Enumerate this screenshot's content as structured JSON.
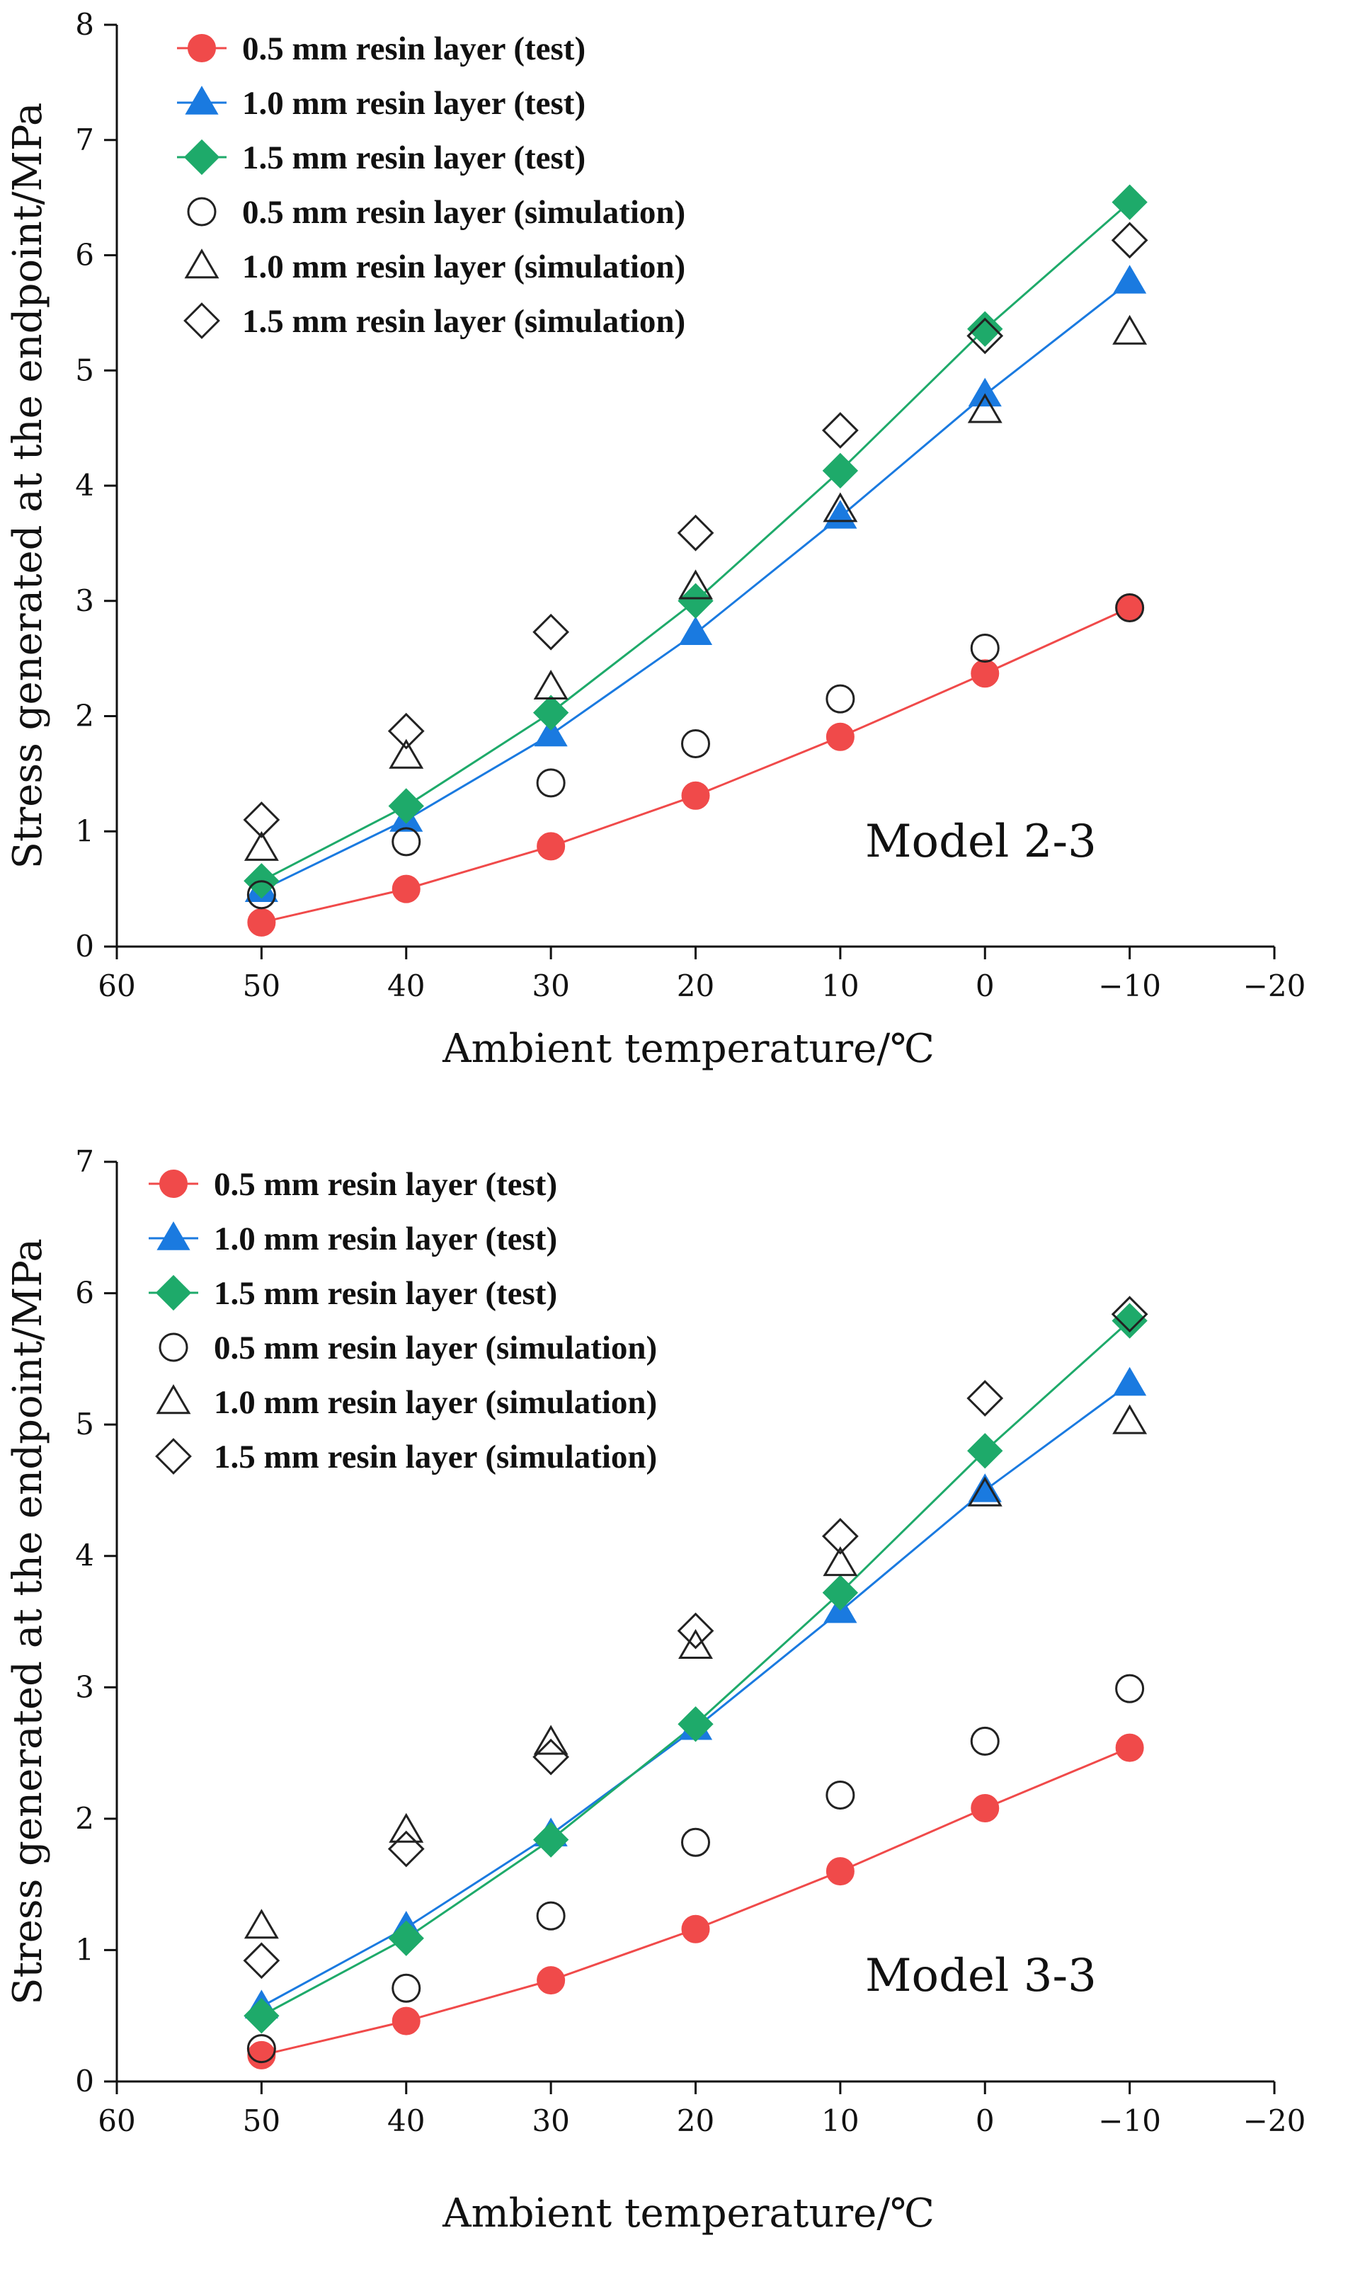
{
  "chart_data": [
    {
      "type": "line",
      "annotation": "Model 2-3",
      "xlabel": "Ambient temperature/℃",
      "ylabel": "Stress generated at the endpoint/MPa",
      "xlim": [
        60,
        -20
      ],
      "ylim": [
        0,
        8
      ],
      "xticks": [
        60,
        50,
        40,
        30,
        20,
        10,
        0,
        -10,
        -20
      ],
      "xtick_labels": [
        "60",
        "50",
        "40",
        "30",
        "20",
        "10",
        "0",
        "−10",
        "−20"
      ],
      "yticks": [
        0,
        1,
        2,
        3,
        4,
        5,
        6,
        7,
        8
      ],
      "ytick_labels": [
        "0",
        "1",
        "2",
        "3",
        "4",
        "5",
        "6",
        "7",
        "8"
      ],
      "legend_position": "top-left",
      "x": [
        50,
        40,
        30,
        20,
        10,
        0,
        -10
      ],
      "series": [
        {
          "name": "0.5 mm resin layer (test)",
          "kind": "test",
          "marker": "circle",
          "color": "#f04a4a",
          "values": [
            0.21,
            0.5,
            0.87,
            1.31,
            1.82,
            2.37,
            2.94
          ]
        },
        {
          "name": "1.0 mm resin layer (test)",
          "kind": "test",
          "marker": "triangle",
          "color": "#1a7ae0",
          "values": [
            0.49,
            1.1,
            1.84,
            2.72,
            3.73,
            4.79,
            5.77
          ]
        },
        {
          "name": "1.5 mm resin layer (test)",
          "kind": "test",
          "marker": "diamond",
          "color": "#1eaa6a",
          "values": [
            0.57,
            1.22,
            2.03,
            3.0,
            4.13,
            5.36,
            6.46
          ]
        },
        {
          "name": "0.5 mm resin layer (simulation)",
          "kind": "simulation",
          "marker": "circle",
          "color": "#222222",
          "values": [
            0.45,
            0.91,
            1.42,
            1.76,
            2.15,
            2.59,
            2.94
          ]
        },
        {
          "name": "1.0 mm resin layer (simulation)",
          "kind": "simulation",
          "marker": "triangle",
          "color": "#222222",
          "values": [
            0.85,
            1.65,
            2.25,
            3.12,
            3.79,
            4.65,
            5.33
          ]
        },
        {
          "name": "1.5 mm resin layer (simulation)",
          "kind": "simulation",
          "marker": "diamond",
          "color": "#222222",
          "values": [
            1.1,
            1.87,
            2.73,
            3.59,
            4.48,
            5.3,
            6.13
          ]
        }
      ]
    },
    {
      "type": "line",
      "annotation": "Model 3-3",
      "xlabel": "Ambient temperature/℃",
      "ylabel": "Stress generated at the endpoint/MPa",
      "xlim": [
        60,
        -20
      ],
      "ylim": [
        0,
        7
      ],
      "xticks": [
        60,
        50,
        40,
        30,
        20,
        10,
        0,
        -10,
        -20
      ],
      "xtick_labels": [
        "60",
        "50",
        "40",
        "30",
        "20",
        "10",
        "0",
        "−10",
        "−20"
      ],
      "yticks": [
        0,
        1,
        2,
        3,
        4,
        5,
        6,
        7
      ],
      "ytick_labels": [
        "0",
        "1",
        "2",
        "3",
        "4",
        "5",
        "6",
        "7"
      ],
      "legend_position": "top-left",
      "x": [
        50,
        40,
        30,
        20,
        10,
        0,
        -10
      ],
      "series": [
        {
          "name": "0.5 mm resin layer (test)",
          "kind": "test",
          "marker": "circle",
          "color": "#f04a4a",
          "values": [
            0.2,
            0.46,
            0.77,
            1.16,
            1.6,
            2.08,
            2.54
          ]
        },
        {
          "name": "1.0 mm resin layer (test)",
          "kind": "test",
          "marker": "triangle",
          "color": "#1a7ae0",
          "values": [
            0.57,
            1.17,
            1.88,
            2.69,
            3.58,
            4.5,
            5.31
          ]
        },
        {
          "name": "1.5 mm resin layer (test)",
          "kind": "test",
          "marker": "diamond",
          "color": "#1eaa6a",
          "values": [
            0.5,
            1.09,
            1.84,
            2.72,
            3.72,
            4.8,
            5.79
          ]
        },
        {
          "name": "0.5 mm resin layer (simulation)",
          "kind": "simulation",
          "marker": "circle",
          "color": "#222222",
          "values": [
            0.25,
            0.71,
            1.26,
            1.82,
            2.18,
            2.59,
            2.99
          ]
        },
        {
          "name": "1.0 mm resin layer (simulation)",
          "kind": "simulation",
          "marker": "triangle",
          "color": "#222222",
          "values": [
            1.18,
            1.91,
            2.58,
            3.31,
            3.94,
            4.47,
            5.02
          ]
        },
        {
          "name": "1.5 mm resin layer (simulation)",
          "kind": "simulation",
          "marker": "diamond",
          "color": "#222222",
          "values": [
            0.92,
            1.77,
            2.47,
            3.43,
            4.15,
            5.2,
            5.84
          ]
        }
      ]
    }
  ]
}
